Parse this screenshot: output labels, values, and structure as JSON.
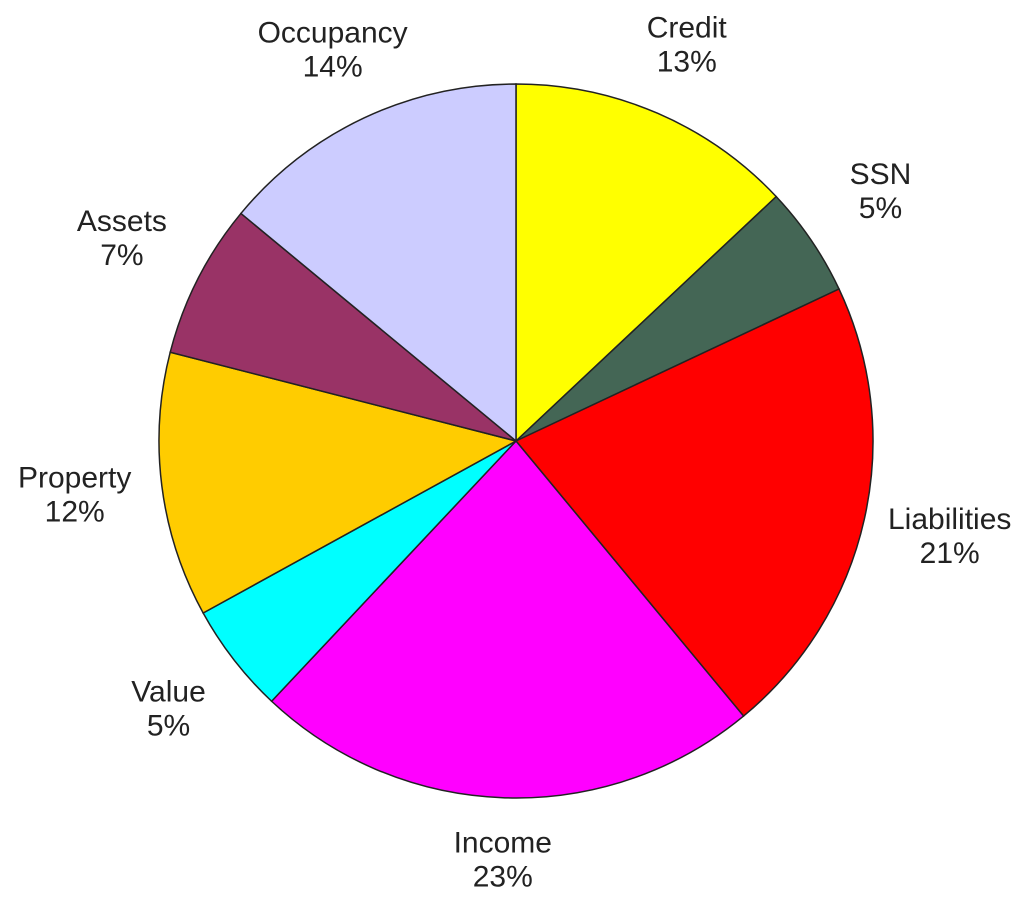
{
  "chart_data": {
    "type": "pie",
    "categories": [
      "Credit",
      "SSN",
      "Liabilities",
      "Income",
      "Value",
      "Property",
      "Assets",
      "Occupancy"
    ],
    "values": [
      13,
      5,
      21,
      23,
      5,
      12,
      7,
      14
    ],
    "value_labels": [
      "13%",
      "5%",
      "21%",
      "23%",
      "5%",
      "12%",
      "7%",
      "14%"
    ],
    "colors": [
      "#ffff00",
      "#446655",
      "#ff0000",
      "#ff00ff",
      "#00ffff",
      "#ffcc00",
      "#993366",
      "#ccccff"
    ]
  }
}
